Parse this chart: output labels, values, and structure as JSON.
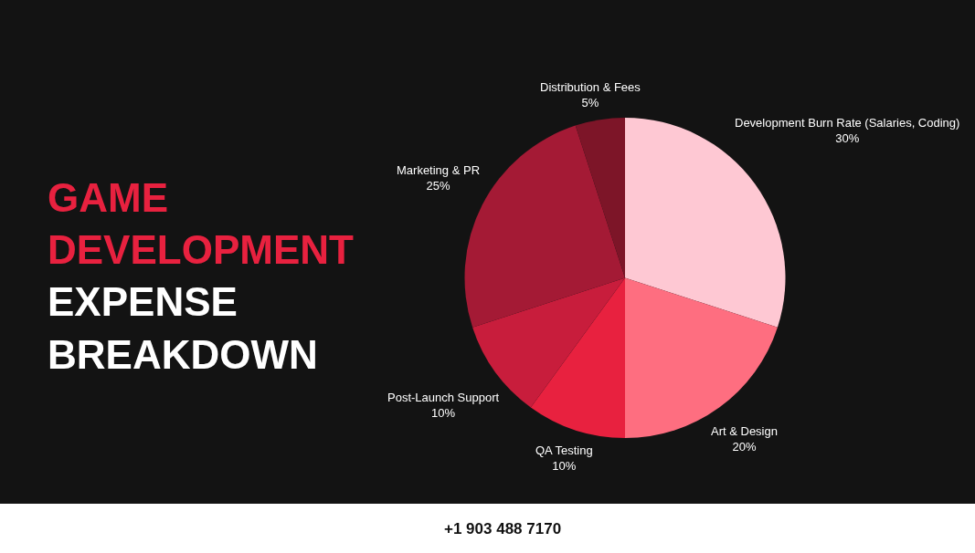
{
  "chart_data": {
    "type": "pie",
    "title": "GAME DEVELOPMENT EXPENSE BREAKDOWN",
    "categories": [
      "Development Burn Rate (Salaries, Coding)",
      "Art & Design",
      "QA Testing",
      "Post-Launch Support",
      "Marketing & PR",
      "Distribution & Fees"
    ],
    "values": [
      30,
      20,
      10,
      10,
      25,
      5
    ],
    "value_labels": [
      "30%",
      "20%",
      "10%",
      "10%",
      "25%",
      "5%"
    ],
    "colors": [
      "#fec8d3",
      "#fe6e80",
      "#e8213f",
      "#c81d3c",
      "#a41a35",
      "#7d1528"
    ],
    "annotations": [
      "+1 903 488 7170"
    ]
  }
}
